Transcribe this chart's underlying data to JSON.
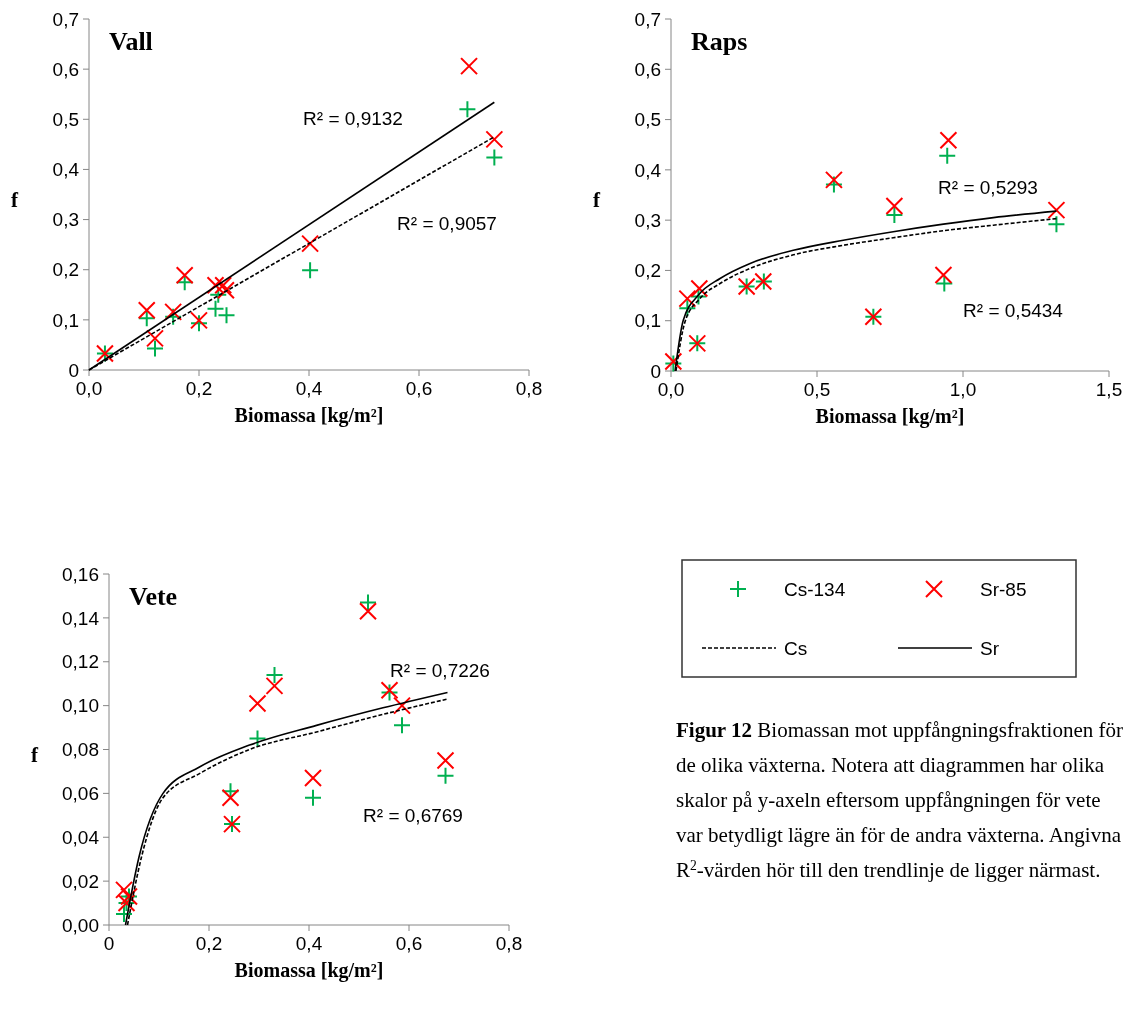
{
  "chart_data": [
    {
      "type": "scatter",
      "title": "Vall",
      "xlabel": "Biomassa [kg/m²]",
      "ylabel": "f",
      "xlim": [
        0,
        0.8
      ],
      "ylim": [
        0,
        0.7
      ],
      "xticks": [
        {
          "value": 0,
          "label": "0,0"
        },
        {
          "value": 0.2,
          "label": "0,2"
        },
        {
          "value": 0.4,
          "label": "0,4"
        },
        {
          "value": 0.6,
          "label": "0,6"
        },
        {
          "value": 0.8,
          "label": "0,8"
        }
      ],
      "yticks": [
        0,
        {
          "value": 0.1,
          "label": "0,1"
        },
        {
          "value": 0.2,
          "label": "0,2"
        },
        {
          "value": 0.3,
          "label": "0,3"
        },
        {
          "value": 0.4,
          "label": "0,4"
        },
        {
          "value": 0.5,
          "label": "0,5"
        },
        {
          "value": 0.6,
          "label": "0,6"
        },
        {
          "value": 0.7,
          "label": "0,7"
        }
      ],
      "series": [
        {
          "color": "#00b050",
          "marker": "plus",
          "x": [
            0.029,
            0.105,
            0.12,
            0.153,
            0.174,
            0.2,
            0.23,
            0.235,
            0.25,
            0.402,
            0.688,
            0.737
          ],
          "values": [
            0.033,
            0.103,
            0.043,
            0.106,
            0.175,
            0.093,
            0.122,
            0.15,
            0.109,
            0.199,
            0.52,
            0.424
          ]
        },
        {
          "color": "#ff0000",
          "marker": "cross",
          "x": [
            0.029,
            0.105,
            0.12,
            0.153,
            0.174,
            0.2,
            0.23,
            0.244,
            0.249,
            0.402,
            0.691,
            0.737
          ],
          "values": [
            0.033,
            0.119,
            0.063,
            0.116,
            0.189,
            0.099,
            0.169,
            0.169,
            0.159,
            0.252,
            0.606,
            0.46
          ]
        },
        {
          "type": "line",
          "color": "#000000",
          "line_style": "dashed",
          "x": [
            0,
            0.737
          ],
          "values": [
            0,
            0.465
          ]
        },
        {
          "type": "line",
          "color": "#000000",
          "line_style": "solid",
          "x": [
            0,
            0.737
          ],
          "values": [
            0,
            0.534
          ]
        }
      ],
      "annotations": [
        "R² = 0,9132",
        "R² = 0,9057"
      ]
    },
    {
      "type": "scatter",
      "title": "Raps",
      "xlabel": "Biomassa [kg/m²]",
      "ylabel": "f",
      "xlim": [
        0,
        1.5
      ],
      "ylim": [
        0,
        0.7
      ],
      "xticks": [
        {
          "value": 0,
          "label": "0,0"
        },
        {
          "value": 0.5,
          "label": "0,5"
        },
        {
          "value": 1,
          "label": "1,0"
        },
        {
          "value": 1.5,
          "label": "1,5"
        }
      ],
      "yticks": [
        0,
        {
          "value": 0.1,
          "label": "0,1"
        },
        {
          "value": 0.2,
          "label": "0,2"
        },
        {
          "value": 0.3,
          "label": "0,3"
        },
        {
          "value": 0.4,
          "label": "0,4"
        },
        {
          "value": 0.5,
          "label": "0,5"
        },
        {
          "value": 0.6,
          "label": "0,6"
        },
        {
          "value": 0.7,
          "label": "0,7"
        }
      ],
      "series": [
        {
          "color": "#00b050",
          "marker": "plus",
          "x": [
            0.008,
            0.056,
            0.094,
            0.09,
            0.259,
            0.318,
            0.558,
            0.693,
            0.765,
            0.946,
            0.936,
            1.32
          ],
          "values": [
            0.015,
            0.125,
            0.148,
            0.055,
            0.168,
            0.178,
            0.371,
            0.108,
            0.31,
            0.428,
            0.174,
            0.292
          ]
        },
        {
          "color": "#ff0000",
          "marker": "cross",
          "x": [
            0.008,
            0.056,
            0.097,
            0.09,
            0.259,
            0.316,
            0.558,
            0.693,
            0.765,
            0.95,
            0.933,
            1.32
          ],
          "values": [
            0.019,
            0.144,
            0.164,
            0.055,
            0.168,
            0.178,
            0.38,
            0.108,
            0.328,
            0.459,
            0.191,
            0.32
          ]
        },
        {
          "type": "line",
          "color": "#000000",
          "line_style": "dashed",
          "x": [
            0.017,
            0.048,
            0.099,
            0.168,
            0.271,
            0.419,
            0.59,
            0.761,
            0.933,
            1.104,
            1.32
          ],
          "values": [
            0,
            0.098,
            0.144,
            0.174,
            0.204,
            0.231,
            0.25,
            0.265,
            0.279,
            0.29,
            0.303
          ]
        },
        {
          "type": "line",
          "color": "#000000",
          "line_style": "solid",
          "x": [
            0.014,
            0.042,
            0.094,
            0.168,
            0.271,
            0.419,
            0.59,
            0.761,
            0.933,
            1.104,
            1.32
          ],
          "values": [
            0,
            0.101,
            0.151,
            0.184,
            0.214,
            0.24,
            0.26,
            0.277,
            0.292,
            0.305,
            0.318
          ]
        }
      ],
      "annotations": [
        "R² = 0,5293",
        "R² = 0,5434"
      ]
    },
    {
      "type": "scatter",
      "title": "Vete",
      "xlabel": "Biomassa [kg/m²]",
      "ylabel": "f",
      "xlim": [
        0,
        0.8
      ],
      "ylim": [
        0,
        0.16
      ],
      "xticks": [
        0,
        {
          "value": 0.2,
          "label": "0,2"
        },
        {
          "value": 0.4,
          "label": "0,4"
        },
        {
          "value": 0.6,
          "label": "0,6"
        },
        {
          "value": 0.8,
          "label": "0,8"
        }
      ],
      "yticks": [
        {
          "value": 0,
          "label": "0,00"
        },
        {
          "value": 0.02,
          "label": "0,02"
        },
        {
          "value": 0.04,
          "label": "0,04"
        },
        {
          "value": 0.06,
          "label": "0,06"
        },
        {
          "value": 0.08,
          "label": "0,08"
        },
        {
          "value": 0.1,
          "label": "0,10"
        },
        {
          "value": 0.12,
          "label": "0,12"
        },
        {
          "value": 0.14,
          "label": "0,14"
        },
        {
          "value": 0.16,
          "label": "0,16"
        }
      ],
      "series": [
        {
          "name": "Cs-134",
          "color": "#00b050",
          "marker": "plus",
          "x": [
            0.03,
            0.035,
            0.04,
            0.243,
            0.246,
            0.297,
            0.331,
            0.408,
            0.518,
            0.561,
            0.586,
            0.673
          ],
          "values": [
            0.005,
            0.01,
            0.013,
            0.061,
            0.046,
            0.085,
            0.114,
            0.058,
            0.147,
            0.106,
            0.091,
            0.068
          ]
        },
        {
          "name": "Sr-85",
          "color": "#ff0000",
          "marker": "cross",
          "x": [
            0.03,
            0.035,
            0.04,
            0.243,
            0.246,
            0.297,
            0.331,
            0.408,
            0.518,
            0.561,
            0.586,
            0.673
          ],
          "values": [
            0.016,
            0.01,
            0.013,
            0.058,
            0.046,
            0.101,
            0.109,
            0.067,
            0.143,
            0.107,
            0.1,
            0.075
          ]
        },
        {
          "name": "Cs",
          "type": "line",
          "color": "#000000",
          "line_style": "dashed",
          "x": [
            0.037,
            0.065,
            0.108,
            0.181,
            0.281,
            0.415,
            0.548,
            0.677
          ],
          "values": [
            0,
            0.031,
            0.058,
            0.069,
            0.08,
            0.088,
            0.096,
            0.103
          ]
        },
        {
          "name": "Sr",
          "type": "line",
          "color": "#000000",
          "line_style": "solid",
          "x": [
            0.033,
            0.06,
            0.108,
            0.181,
            0.281,
            0.415,
            0.548,
            0.677
          ],
          "values": [
            0,
            0.031,
            0.06,
            0.072,
            0.082,
            0.091,
            0.099,
            0.106
          ]
        }
      ],
      "legend": "right",
      "annotations": [
        "R² = 0,7226",
        "R² = 0,6769",
        "Figur 12",
        "Biomassan mot uppfångningsfraktionen för de olika växterna. Notera att diagrammen har olika skalor på y-axeln eftersom uppfångningen för vete var betydligt lägre än för de andra växterna. Angivna R$^{2}$-värden hör till den trendlinje de ligger närmast."
      ]
    }
  ]
}
